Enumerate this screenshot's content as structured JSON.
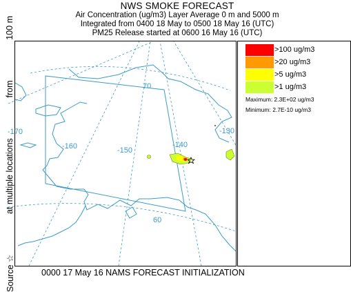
{
  "header": {
    "title": "NWS SMOKE FORECAST",
    "line1": "Air Concentration (ug/m3) Layer Average    0 m and  5000 m",
    "line2": "Integrated from 0400 18 May to 0500 18 May 16 (UTC)",
    "line3": "PM25 Release started at 0600 16 May 16 (UTC)"
  },
  "side_label": {
    "source": "Source ☆",
    "multiple": "at multiple locations",
    "from": "from",
    "height": "100 m"
  },
  "map": {
    "lat_labels": [
      "70",
      "60"
    ],
    "lon_labels": [
      "-170",
      "-160",
      "-150",
      "-140",
      "-130"
    ],
    "colors": {
      "land_outline": "#3a9bc9",
      "graticule": "#3a9bc9",
      "domain_box": "#3a9bc9"
    }
  },
  "legend": {
    "items": [
      {
        "label": ">100 ug/m3",
        "color": "#ff0000"
      },
      {
        "label": ">20 ug/m3",
        "color": "#ff9900"
      },
      {
        "label": ">5 ug/m3",
        "color": "#ffff00"
      },
      {
        "label": ">1 ug/m3",
        "color": "#ccff33"
      }
    ],
    "maximum": "Maximum: 2.3E+02 ug/m3",
    "minimum": "Minimum: 2.7E-10 ug/m3"
  },
  "footer": "0000 17 May 16 NAMS FORECAST INITIALIZATION"
}
